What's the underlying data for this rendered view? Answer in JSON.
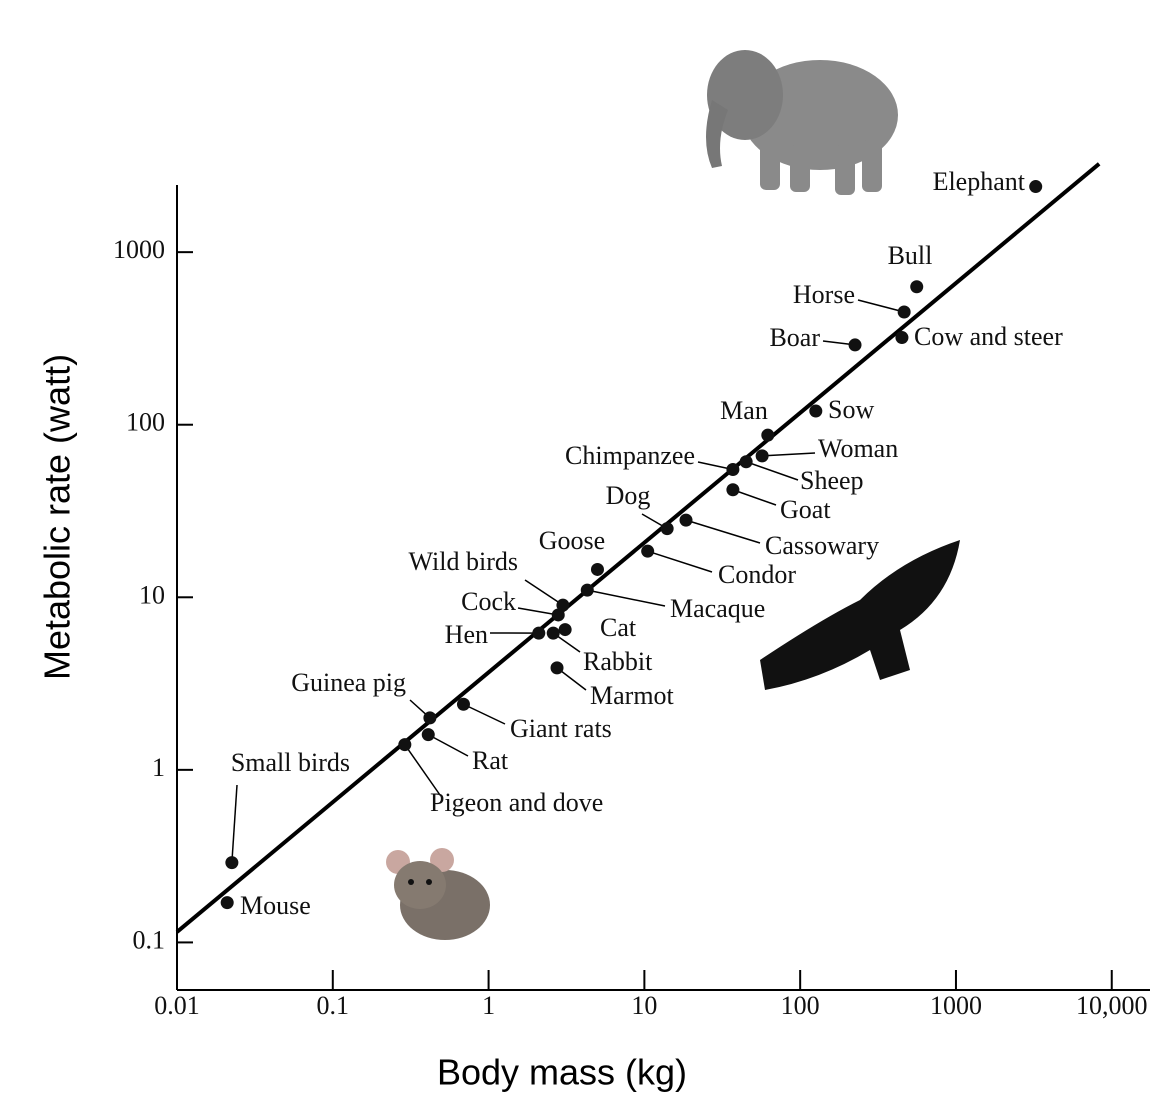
{
  "chart_data": {
    "type": "scatter",
    "x_label": "Body mass (kg)",
    "y_label": "Metabolic rate (watt)",
    "xscale": "log",
    "yscale": "log",
    "xlim": [
      0.01,
      17600
    ],
    "ylim": [
      0.053,
      2450
    ],
    "xticks": [
      0.01,
      0.1,
      1,
      10,
      100,
      1000,
      {
        "value": 10000,
        "label": "10,000"
      }
    ],
    "yticks": [
      0.1,
      1,
      10,
      100,
      1000
    ],
    "color": "#111111",
    "labels": [
      "Elephant",
      "Bull",
      "Horse",
      "Boar",
      "Cow and steer",
      "Sow",
      "Man",
      "Woman",
      "Sheep",
      "Chimpanzee",
      "Goat",
      "Cassowary",
      "Dog",
      "Condor",
      "Goose",
      "Macaque",
      "Wild birds",
      "Cock",
      "Cat",
      "Hen",
      "Rabbit",
      "Marmot",
      "Guinea pig",
      "Giant rats",
      "Rat",
      "Pigeon and dove",
      "Small birds",
      "Mouse"
    ],
    "x": [
      3250,
      560,
      465,
      225,
      450,
      126,
      62,
      57,
      45,
      37,
      37,
      18.5,
      14,
      10.5,
      5.0,
      4.3,
      3.0,
      2.8,
      3.1,
      2.1,
      2.6,
      2.75,
      0.42,
      0.69,
      0.41,
      0.29,
      0.0225,
      0.021
    ],
    "values": [
      2400,
      630,
      450,
      290,
      320,
      120,
      87,
      66,
      61,
      55,
      42,
      28,
      25,
      18.5,
      14.5,
      11,
      9.0,
      7.9,
      6.5,
      6.2,
      6.2,
      3.9,
      2.0,
      2.4,
      1.6,
      1.4,
      0.29,
      0.17
    ],
    "fit": {
      "color": "#000000",
      "x": [
        0.01,
        8300
      ],
      "values": [
        0.115,
        3250
      ]
    }
  }
}
